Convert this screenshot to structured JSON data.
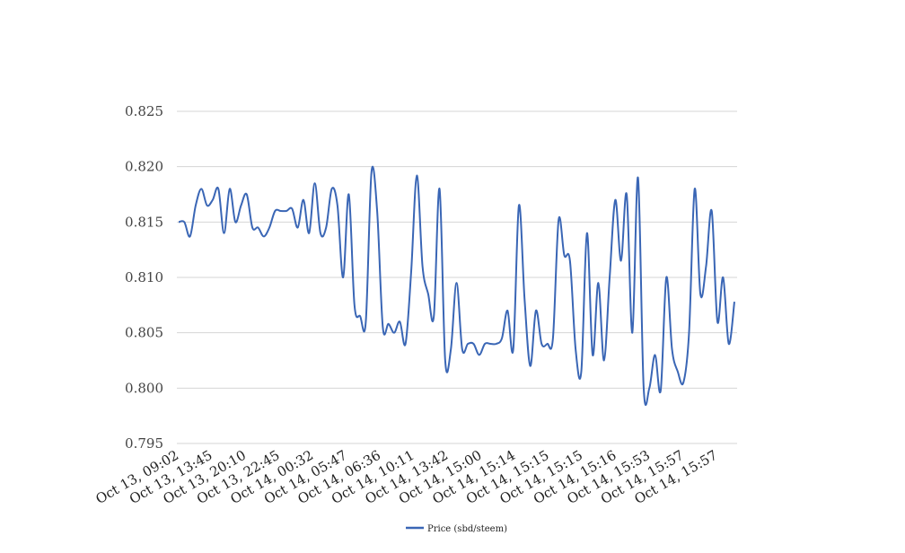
{
  "chart_data": {
    "type": "line",
    "title": "",
    "xlabel": "",
    "ylabel": "",
    "ylim": [
      0.795,
      0.825
    ],
    "yticks": [
      "0.795",
      "0.800",
      "0.805",
      "0.810",
      "0.815",
      "0.820",
      "0.825"
    ],
    "grid": true,
    "legend_position": "bottom",
    "x_tick_labels": [
      "Oct 13, 09:02",
      "Oct 13, 13:45",
      "Oct 13, 20:10",
      "Oct 13, 22:45",
      "Oct 14, 00:32",
      "Oct 14, 05:47",
      "Oct 14, 06:36",
      "Oct 14, 10:11",
      "Oct 14, 13:42",
      "Oct 14, 15:00",
      "Oct 14, 15:14",
      "Oct 14, 15:15",
      "Oct 14, 15:15",
      "Oct 14, 15:16",
      "Oct 14, 15:53",
      "Oct 14, 15:57",
      "Oct 14, 15:57"
    ],
    "series": [
      {
        "name": "Price (sbd/steem)",
        "color": "#3a66b5",
        "values": [
          0.815,
          0.815,
          0.8137,
          0.8165,
          0.818,
          0.8165,
          0.817,
          0.818,
          0.814,
          0.818,
          0.815,
          0.8165,
          0.8175,
          0.8145,
          0.8145,
          0.8137,
          0.8145,
          0.816,
          0.816,
          0.816,
          0.8162,
          0.8145,
          0.817,
          0.814,
          0.8185,
          0.814,
          0.8145,
          0.818,
          0.8165,
          0.81,
          0.8175,
          0.8075,
          0.8065,
          0.806,
          0.8195,
          0.816,
          0.8055,
          0.8058,
          0.805,
          0.806,
          0.804,
          0.8105,
          0.8192,
          0.811,
          0.8085,
          0.8065,
          0.818,
          0.8025,
          0.8035,
          0.8095,
          0.8035,
          0.804,
          0.804,
          0.803,
          0.804,
          0.804,
          0.804,
          0.8045,
          0.807,
          0.8035,
          0.8165,
          0.808,
          0.802,
          0.807,
          0.804,
          0.804,
          0.8045,
          0.8152,
          0.812,
          0.8115,
          0.8035,
          0.8015,
          0.814,
          0.803,
          0.8095,
          0.8025,
          0.81,
          0.817,
          0.8115,
          0.8175,
          0.805,
          0.819,
          0.8,
          0.8,
          0.803,
          0.7998,
          0.81,
          0.8035,
          0.8015,
          0.8005,
          0.805,
          0.818,
          0.8085,
          0.811,
          0.816,
          0.806,
          0.81,
          0.804,
          0.8078
        ]
      }
    ]
  }
}
